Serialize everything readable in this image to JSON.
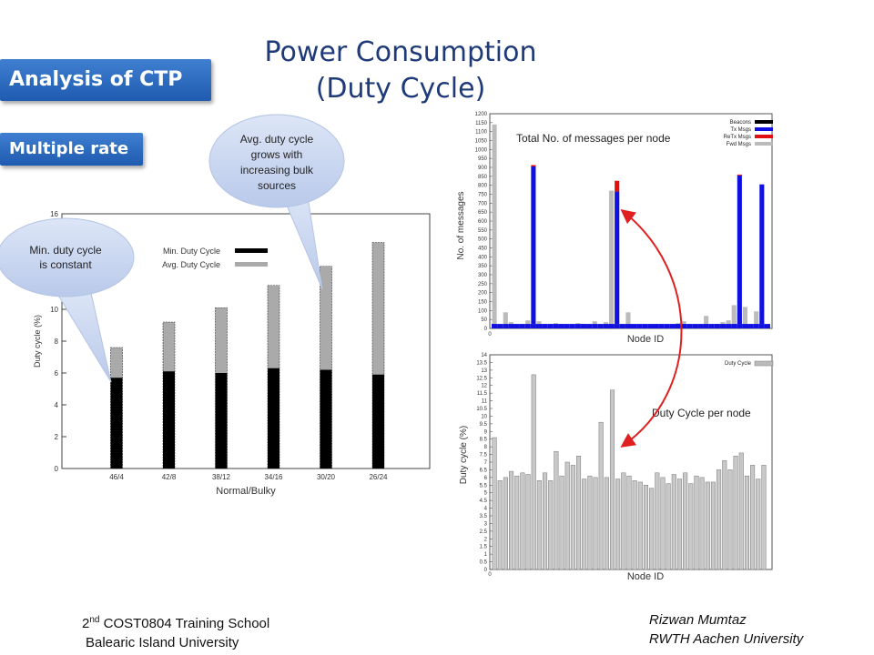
{
  "title_line1": "Power Consumption",
  "title_line2": "(Duty Cycle)",
  "tag_analysis": "Analysis of CTP",
  "tag_multiple": "Multiple rate",
  "callout_min": "Min. duty cycle is constant",
  "callout_avg": "Avg. duty cycle grows with increasing bulk sources",
  "label_total": "Total No. of messages per node",
  "label_duty_per_node": "Duty Cycle per node",
  "footer": {
    "left_prefix": "2",
    "left_sup": "nd",
    "left_rest": " COST0804 Training School",
    "left_line2": "Balearic Island University",
    "right_line1": "Rizwan Mumtaz",
    "right_line2": "RWTH Aachen University"
  },
  "colors": {
    "title": "#1F3A78",
    "tag": "#2B66BE",
    "callout": "#C9D6F0",
    "arrow": "#E02020",
    "tx": "#1010E0",
    "retx": "#E01010",
    "fwd": "#BBBBBB",
    "beacon": "#000000"
  },
  "chart_data": [
    {
      "type": "bar",
      "xlabel": "Normal/Bulky",
      "ylabel": "Duty cycle (%)",
      "ylim": [
        0,
        16
      ],
      "yticks": [
        0,
        2,
        4,
        6,
        8,
        10,
        12,
        14,
        16
      ],
      "categories": [
        "46/4",
        "42/8",
        "38/12",
        "34/16",
        "30/20",
        "26/24"
      ],
      "series": [
        {
          "name": "Min. Duty Cycle",
          "values": [
            5.7,
            6.1,
            6.0,
            6.3,
            6.2,
            5.9
          ]
        },
        {
          "name": "Avg. Duty Cycle",
          "values": [
            7.6,
            9.2,
            10.1,
            11.5,
            12.7,
            14.2
          ]
        }
      ],
      "legend": "top-center"
    },
    {
      "type": "bar",
      "stacked": true,
      "xlabel": "Node ID",
      "ylabel": "No. of messages",
      "ylim": [
        0,
        1200
      ],
      "yticks": [
        0,
        50,
        100,
        150,
        200,
        250,
        300,
        350,
        400,
        450,
        500,
        550,
        600,
        650,
        700,
        750,
        800,
        850,
        900,
        950,
        1000,
        1050,
        1100,
        1150,
        1200
      ],
      "x": [
        1,
        2,
        3,
        4,
        5,
        6,
        7,
        8,
        9,
        10,
        11,
        12,
        13,
        14,
        15,
        16,
        17,
        18,
        19,
        20,
        21,
        22,
        23,
        24,
        25,
        26,
        27,
        28,
        29,
        30,
        31,
        32,
        33,
        34,
        35,
        36,
        37,
        38,
        39,
        40,
        41,
        42,
        43,
        44,
        45,
        46,
        47,
        48,
        49,
        50
      ],
      "xtick_labels": [
        "0"
      ],
      "series": [
        {
          "name": "Beacons",
          "values": [
            25,
            25,
            25,
            25,
            25,
            25,
            25,
            25,
            25,
            25,
            25,
            25,
            25,
            25,
            25,
            25,
            25,
            25,
            25,
            25,
            25,
            25,
            25,
            25,
            25,
            25,
            25,
            25,
            25,
            25,
            25,
            25,
            25,
            25,
            25,
            25,
            25,
            25,
            25,
            25,
            25,
            25,
            25,
            25,
            25,
            25,
            25,
            25,
            25,
            25
          ]
        },
        {
          "name": "Tx Msgs",
          "values": [
            0,
            0,
            0,
            0,
            0,
            0,
            0,
            880,
            0,
            0,
            0,
            0,
            0,
            0,
            0,
            0,
            0,
            0,
            0,
            0,
            0,
            0,
            740,
            0,
            0,
            0,
            0,
            0,
            0,
            0,
            0,
            0,
            0,
            0,
            0,
            0,
            0,
            0,
            0,
            0,
            0,
            0,
            0,
            0,
            830,
            0,
            0,
            0,
            780,
            0
          ]
        },
        {
          "name": "ReTx Msgs",
          "values": [
            0,
            0,
            0,
            0,
            0,
            0,
            0,
            8,
            0,
            0,
            0,
            0,
            0,
            0,
            0,
            0,
            0,
            0,
            0,
            0,
            0,
            0,
            60,
            0,
            0,
            0,
            0,
            0,
            0,
            0,
            0,
            0,
            0,
            0,
            0,
            0,
            0,
            0,
            0,
            0,
            0,
            0,
            0,
            0,
            5,
            0,
            0,
            0,
            0,
            0
          ]
        },
        {
          "name": "Fwd Msgs",
          "values": [
            1140,
            20,
            90,
            35,
            0,
            20,
            45,
            0,
            40,
            20,
            25,
            30,
            25,
            20,
            15,
            30,
            25,
            20,
            40,
            20,
            35,
            770,
            0,
            10,
            90,
            15,
            10,
            10,
            20,
            25,
            15,
            20,
            20,
            30,
            40,
            10,
            10,
            15,
            70,
            20,
            25,
            35,
            45,
            130,
            85,
            120,
            10,
            95,
            35,
            0
          ]
        }
      ],
      "legend": "top-right"
    },
    {
      "type": "bar",
      "xlabel": "Node ID",
      "ylabel": "Duty cycle (%)",
      "ylim": [
        0,
        14
      ],
      "yticks": [
        0,
        0.5,
        1,
        1.5,
        2,
        2.5,
        3,
        3.5,
        4,
        4.5,
        5,
        5.5,
        6,
        6.5,
        7,
        7.5,
        8,
        8.5,
        9,
        9.5,
        10,
        10.5,
        11,
        11.5,
        12,
        12.5,
        13,
        13.5,
        14
      ],
      "xtick_labels": [
        "0"
      ],
      "series": [
        {
          "name": "Duty Cycle",
          "values": [
            8.6,
            5.8,
            6.0,
            6.4,
            6.1,
            6.3,
            6.2,
            12.7,
            5.8,
            6.3,
            5.8,
            7.7,
            6.1,
            7.0,
            6.8,
            7.4,
            5.9,
            6.1,
            6.0,
            9.6,
            6.0,
            11.7,
            5.9,
            6.3,
            6.1,
            5.8,
            5.7,
            5.5,
            5.3,
            6.3,
            6.0,
            5.6,
            6.2,
            5.9,
            6.3,
            5.6,
            6.1,
            6.0,
            5.7,
            5.7,
            6.5,
            7.1,
            6.5,
            7.4,
            7.6,
            6.1,
            6.8,
            5.9,
            6.8
          ]
        }
      ],
      "legend": "top-right"
    }
  ]
}
